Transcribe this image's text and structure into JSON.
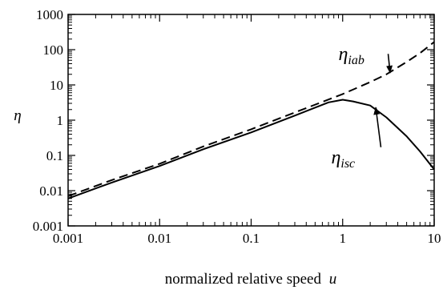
{
  "chart_data": {
    "type": "line",
    "title": "",
    "xlabel": "normalized relative speed",
    "xlabel_symbol": "u",
    "ylabel": "η",
    "x_scale": "log",
    "y_scale": "log",
    "xlim": [
      0.001,
      10
    ],
    "ylim": [
      0.001,
      1000
    ],
    "x_ticks": [
      0.001,
      0.01,
      0.1,
      1,
      10
    ],
    "x_tick_labels": [
      "0.001",
      "0.01",
      "0.1",
      "1",
      "10"
    ],
    "y_ticks": [
      0.001,
      0.01,
      0.1,
      1,
      10,
      100,
      1000
    ],
    "y_tick_labels": [
      "0.001",
      "0.01",
      "0.1",
      "1",
      "10",
      "100",
      "1000"
    ],
    "grid": false,
    "legend": "none",
    "series": [
      {
        "name": "η_isc",
        "label_base": "η",
        "label_sub": "isc",
        "style": "solid",
        "color": "#000000",
        "x": [
          0.001,
          0.003,
          0.01,
          0.03,
          0.1,
          0.3,
          0.7,
          1.0,
          1.3,
          2.0,
          3,
          5,
          7,
          10
        ],
        "y": [
          0.006,
          0.017,
          0.05,
          0.15,
          0.45,
          1.35,
          3.2,
          3.8,
          3.4,
          2.6,
          1.2,
          0.35,
          0.13,
          0.04
        ]
      },
      {
        "name": "η_iab",
        "label_base": "η",
        "label_sub": "iab",
        "style": "dashed",
        "color": "#000000",
        "x": [
          0.001,
          0.003,
          0.01,
          0.03,
          0.1,
          0.3,
          1.0,
          2.0,
          3,
          5,
          7,
          10
        ],
        "y": [
          0.007,
          0.02,
          0.058,
          0.18,
          0.55,
          1.65,
          5.5,
          12,
          20,
          45,
          80,
          165
        ]
      }
    ],
    "annotations": [
      {
        "series": "η_iab",
        "text_base": "η",
        "text_sub": "iab",
        "arrow_to_x": 3.3,
        "arrow_to_y": 22,
        "text_at_x": 0.9,
        "text_at_y": 50
      },
      {
        "series": "η_isc",
        "text_base": "η",
        "text_sub": "isc",
        "arrow_to_x": 2.3,
        "arrow_to_y": 2.3,
        "text_at_x": 0.75,
        "text_at_y": 0.06
      }
    ]
  }
}
